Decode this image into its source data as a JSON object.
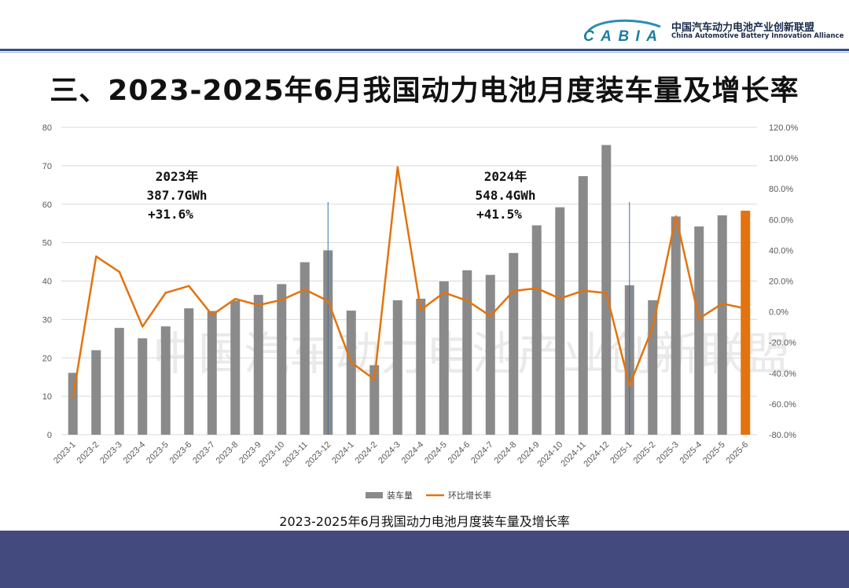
{
  "header": {
    "org_name_cn": "中国汽车动力电池产业创新联盟",
    "org_name_en": "China Automotive Battery Innovation Alliance",
    "logo_text": "CABIA"
  },
  "title": "三、2023-2025年6月我国动力电池月度装车量及增长率",
  "caption": "2023-2025年6月我国动力电池月度装车量及增长率",
  "watermark": "中国汽车动力电池产业创新联盟",
  "colors": {
    "bar": "#8a8a8a",
    "bar_highlight": "#e2730e",
    "line": "#e2730e",
    "header_band": "#434a7e"
  },
  "annotations": [
    {
      "lines": [
        "2023年",
        "387.7GWh",
        "+31.6%"
      ]
    },
    {
      "lines": [
        "2024年",
        "548.4GWh",
        "+41.5%"
      ]
    }
  ],
  "chart_data": {
    "type": "bar",
    "categories": [
      "2023-1",
      "2023-2",
      "2023-3",
      "2023-4",
      "2023-5",
      "2023-6",
      "2023-7",
      "2023-8",
      "2023-9",
      "2023-10",
      "2023-11",
      "2023-12",
      "2024-1",
      "2024-2",
      "2024-3",
      "2024-4",
      "2024-5",
      "2024-6",
      "2024-7",
      "2024-8",
      "2024-9",
      "2024-10",
      "2024-11",
      "2024-12",
      "2025-1",
      "2025-2",
      "2025-3",
      "2025-4",
      "2025-5",
      "2025-6"
    ],
    "series": [
      {
        "name": "装车量",
        "type": "bar",
        "axis": "left",
        "values": [
          16.1,
          22.0,
          27.8,
          25.1,
          28.2,
          32.9,
          32.2,
          34.9,
          36.4,
          39.2,
          44.9,
          48.0,
          32.3,
          18.1,
          35.0,
          35.4,
          39.9,
          42.8,
          41.6,
          47.3,
          54.5,
          59.2,
          67.3,
          75.4,
          38.9,
          35.0,
          56.8,
          54.2,
          57.1,
          58.3
        ],
        "highlight_index": 29
      },
      {
        "name": "环比增长率",
        "type": "line",
        "axis": "right",
        "values": [
          -56.0,
          36.0,
          26.0,
          -9.6,
          12.4,
          16.8,
          -2.1,
          8.4,
          4.3,
          7.7,
          14.5,
          7.0,
          -33.0,
          -44.0,
          94.0,
          1.2,
          12.5,
          7.2,
          -2.8,
          13.6,
          15.3,
          8.6,
          13.7,
          12.2,
          -48.0,
          -10.1,
          62.0,
          -4.4,
          5.3,
          2.1
        ]
      }
    ],
    "ylim": [
      0,
      80
    ],
    "yticks": [
      "0",
      "10",
      "20",
      "30",
      "40",
      "50",
      "60",
      "70",
      "80"
    ],
    "y2lim": [
      -80,
      120
    ],
    "y2ticks": [
      "-80.0%",
      "-60.0%",
      "-40.0%",
      "-20.0%",
      "0.0%",
      "20.0%",
      "40.0%",
      "60.0%",
      "80.0%",
      "100.0%",
      "120.0%"
    ],
    "grid": true,
    "legend_position": "bottom"
  }
}
